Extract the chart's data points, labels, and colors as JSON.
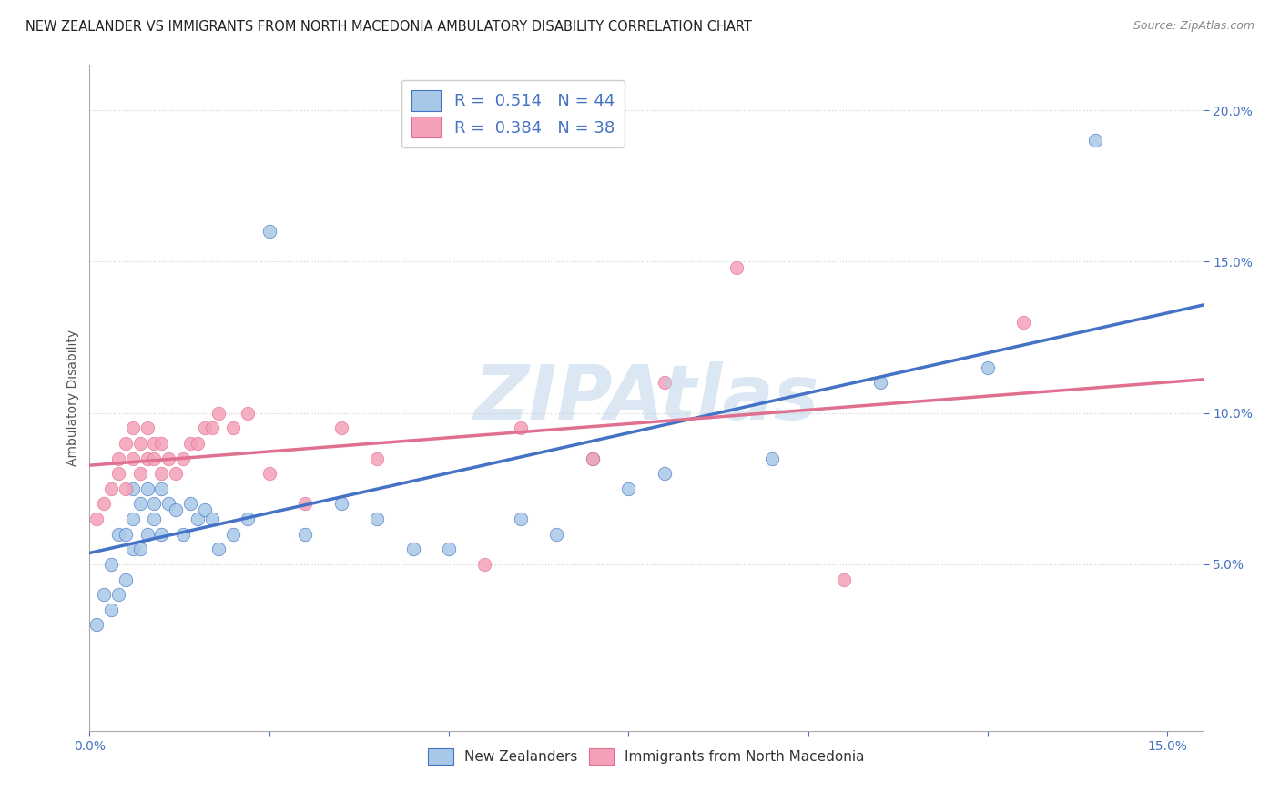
{
  "title": "NEW ZEALANDER VS IMMIGRANTS FROM NORTH MACEDONIA AMBULATORY DISABILITY CORRELATION CHART",
  "source": "Source: ZipAtlas.com",
  "ylabel": "Ambulatory Disability",
  "xlim": [
    0.0,
    0.155
  ],
  "ylim": [
    -0.005,
    0.215
  ],
  "color_nz": "#a8c8e8",
  "color_im": "#f4a0b8",
  "line_color_nz": "#4472c4",
  "line_color_im": "#e07090",
  "legend_nz": "R =  0.514   N = 44",
  "legend_im": "R =  0.384   N = 38",
  "nz_x": [
    0.001,
    0.002,
    0.003,
    0.003,
    0.004,
    0.004,
    0.005,
    0.005,
    0.006,
    0.006,
    0.006,
    0.007,
    0.007,
    0.008,
    0.008,
    0.009,
    0.009,
    0.01,
    0.01,
    0.011,
    0.012,
    0.013,
    0.014,
    0.015,
    0.016,
    0.017,
    0.018,
    0.02,
    0.022,
    0.025,
    0.03,
    0.035,
    0.04,
    0.045,
    0.05,
    0.06,
    0.065,
    0.07,
    0.075,
    0.08,
    0.095,
    0.11,
    0.125,
    0.14
  ],
  "nz_y": [
    0.03,
    0.04,
    0.035,
    0.05,
    0.04,
    0.06,
    0.045,
    0.06,
    0.055,
    0.065,
    0.075,
    0.055,
    0.07,
    0.06,
    0.075,
    0.065,
    0.07,
    0.06,
    0.075,
    0.07,
    0.068,
    0.06,
    0.07,
    0.065,
    0.068,
    0.065,
    0.055,
    0.06,
    0.065,
    0.16,
    0.06,
    0.07,
    0.065,
    0.055,
    0.055,
    0.065,
    0.06,
    0.085,
    0.075,
    0.08,
    0.085,
    0.11,
    0.115,
    0.19
  ],
  "im_x": [
    0.001,
    0.002,
    0.003,
    0.004,
    0.004,
    0.005,
    0.005,
    0.006,
    0.006,
    0.007,
    0.007,
    0.008,
    0.008,
    0.009,
    0.009,
    0.01,
    0.01,
    0.011,
    0.012,
    0.013,
    0.014,
    0.015,
    0.016,
    0.017,
    0.018,
    0.02,
    0.022,
    0.025,
    0.03,
    0.035,
    0.04,
    0.055,
    0.06,
    0.07,
    0.08,
    0.09,
    0.105,
    0.13
  ],
  "im_y": [
    0.065,
    0.07,
    0.075,
    0.08,
    0.085,
    0.075,
    0.09,
    0.085,
    0.095,
    0.08,
    0.09,
    0.085,
    0.095,
    0.085,
    0.09,
    0.08,
    0.09,
    0.085,
    0.08,
    0.085,
    0.09,
    0.09,
    0.095,
    0.095,
    0.1,
    0.095,
    0.1,
    0.08,
    0.07,
    0.095,
    0.085,
    0.05,
    0.095,
    0.085,
    0.11,
    0.148,
    0.045,
    0.13
  ]
}
